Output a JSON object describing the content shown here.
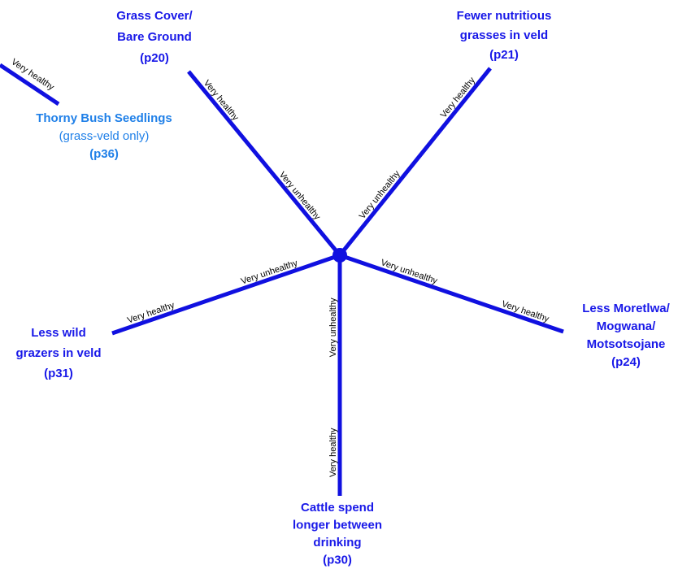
{
  "legend": {
    "healthy_label": "Very healthy",
    "lines": [
      "Thorny Bush Seedlings",
      "(grass-veld only)",
      "(p36)"
    ]
  },
  "axes": [
    {
      "lines": [
        "Grass Cover/",
        "Bare Ground",
        "(p20)"
      ],
      "healthy_label": "Very healthy",
      "unhealthy_label": "Very unhealthy"
    },
    {
      "lines": [
        "Fewer nutritious",
        "grasses in veld",
        "(p21)"
      ],
      "healthy_label": "Very healthy",
      "unhealthy_label": "Very unhealthy"
    },
    {
      "lines": [
        "Less Moretlwa/",
        "Mogwana/",
        "Motsotsojane",
        "(p24)"
      ],
      "healthy_label": "Very healthy",
      "unhealthy_label": "Very unhealthy"
    },
    {
      "lines": [
        "Cattle spend",
        "longer between",
        "drinking",
        "(p30)"
      ],
      "healthy_label": "Very healthy",
      "unhealthy_label": "Very unhealthy"
    },
    {
      "lines": [
        "Less wild",
        "grazers in veld",
        "(p31)"
      ],
      "healthy_label": "Very healthy",
      "unhealthy_label": "Very unhealthy"
    }
  ]
}
